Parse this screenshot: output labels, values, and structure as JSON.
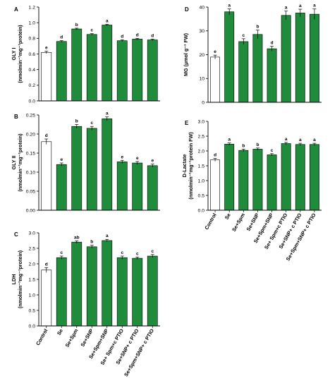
{
  "colors": {
    "treated": "#1e8c3a",
    "control": "#ffffff",
    "stroke": "#000000"
  },
  "chart_data": [
    {
      "type": "bar",
      "panel": "A",
      "ylabel_line1": "GLY I",
      "ylabel_line2": "(nmolmin⁻¹mg⁻¹protein)",
      "ylim": [
        0,
        1.2
      ],
      "yticks": [
        "0.0",
        "0.2",
        "0.4",
        "0.6",
        "0.8",
        "1.0",
        "1.2"
      ],
      "values": [
        0.62,
        0.76,
        0.92,
        0.85,
        0.97,
        0.77,
        0.79,
        0.78
      ],
      "errors": [
        0.015,
        0.01,
        0.01,
        0.01,
        0.01,
        0.01,
        0.01,
        0.01
      ],
      "letters": [
        "e",
        "d",
        "b",
        "c",
        "a",
        "d",
        "d",
        "d"
      ]
    },
    {
      "type": "bar",
      "panel": "B",
      "ylabel_line1": "GLY II",
      "ylabel_line2": "(nmolmin⁻¹mg⁻¹protein)",
      "ylim": [
        0,
        0.25
      ],
      "yticks": [
        "0.00",
        "0.05",
        "0.10",
        "0.15",
        "0.20",
        "0.25"
      ],
      "values": [
        0.18,
        0.12,
        0.22,
        0.215,
        0.24,
        0.127,
        0.124,
        0.117
      ],
      "errors": [
        0.007,
        0.004,
        0.005,
        0.005,
        0.005,
        0.004,
        0.004,
        0.004
      ],
      "letters": [
        "d",
        "e",
        "b",
        "c",
        "a",
        "e",
        "e",
        "e"
      ]
    },
    {
      "type": "bar",
      "panel": "C",
      "ylabel_line1": "LDH",
      "ylabel_line2": "(nmolmin⁻¹mg⁻¹protein)",
      "ylim": [
        0,
        3.0
      ],
      "yticks": [
        "0.0",
        "0.5",
        "1.0",
        "1.5",
        "2.0",
        "2.5",
        "3.0"
      ],
      "values": [
        1.8,
        2.2,
        2.7,
        2.55,
        2.75,
        2.2,
        2.18,
        2.25
      ],
      "errors": [
        0.08,
        0.05,
        0.04,
        0.05,
        0.04,
        0.05,
        0.04,
        0.05
      ],
      "letters": [
        "d",
        "c",
        "ab",
        "b",
        "a",
        "c",
        "c",
        "c"
      ]
    },
    {
      "type": "bar",
      "panel": "D",
      "ylabel_line1": "MG (µmol g⁻¹ FW)",
      "ylabel_line2": "",
      "ylim": [
        0,
        40
      ],
      "yticks": [
        "0",
        "10",
        "20",
        "30",
        "40"
      ],
      "values": [
        19,
        38,
        25.5,
        28.5,
        22.5,
        36.5,
        37.5,
        37
      ],
      "errors": [
        0.8,
        1.2,
        1.2,
        1.8,
        1.0,
        1.8,
        1.6,
        2.2
      ],
      "letters": [
        "e",
        "a",
        "c",
        "b",
        "d",
        "a",
        "a",
        "a"
      ]
    },
    {
      "type": "bar",
      "panel": "E",
      "ylabel_line1": "D-Lactate",
      "ylabel_line2": "(nmolmin⁻¹mg⁻¹protein FW)",
      "ylim": [
        0,
        3.0
      ],
      "yticks": [
        "0.0",
        "0.5",
        "1.0",
        "1.5",
        "2.0",
        "2.5",
        "3.0"
      ],
      "values": [
        1.7,
        2.23,
        2.02,
        2.06,
        1.87,
        2.25,
        2.22,
        2.22
      ],
      "errors": [
        0.05,
        0.04,
        0.04,
        0.04,
        0.04,
        0.04,
        0.04,
        0.04
      ],
      "letters": [
        "d",
        "a",
        "b",
        "b",
        "c",
        "a",
        "a",
        "a"
      ]
    }
  ],
  "categories": [
    "Control",
    "Se",
    "Se+Spm",
    "Se+SNP",
    "Se+Spm+SNP",
    "Se+ Spm+c PTIO",
    "Se+SNP+ c PTIO",
    "Se+Spm+SNP+ c PTIO"
  ]
}
